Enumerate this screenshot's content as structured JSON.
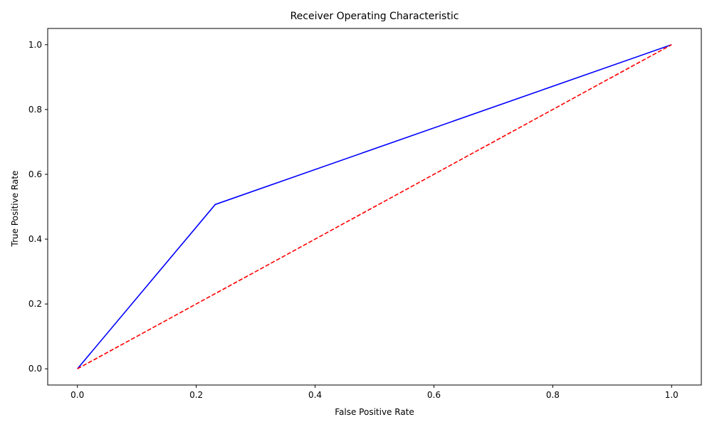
{
  "chart_data": {
    "type": "line",
    "title": "Receiver Operating Characteristic",
    "xlabel": "False Positive Rate",
    "ylabel": "True Positive Rate",
    "xlim": [
      -0.05,
      1.05
    ],
    "ylim": [
      -0.05,
      1.05
    ],
    "xticks": [
      {
        "value": 0.0,
        "label": "0.0"
      },
      {
        "value": 0.2,
        "label": "0.2"
      },
      {
        "value": 0.4,
        "label": "0.4"
      },
      {
        "value": 0.6,
        "label": "0.6"
      },
      {
        "value": 0.8,
        "label": "0.8"
      },
      {
        "value": 1.0,
        "label": "1.0"
      }
    ],
    "yticks": [
      {
        "value": 0.0,
        "label": "0.0"
      },
      {
        "value": 0.2,
        "label": "0.2"
      },
      {
        "value": 0.4,
        "label": "0.4"
      },
      {
        "value": 0.6,
        "label": "0.6"
      },
      {
        "value": 0.8,
        "label": "0.8"
      },
      {
        "value": 1.0,
        "label": "1.0"
      }
    ],
    "grid": false,
    "legend": "none",
    "series": [
      {
        "color": "#0000ff",
        "dash": "solid",
        "x": [
          0.0,
          0.232,
          1.0
        ],
        "y": [
          0.0,
          0.507,
          1.0
        ]
      },
      {
        "color": "#ff0000",
        "dash": "dashed",
        "x": [
          0.0,
          1.0
        ],
        "y": [
          0.0,
          1.0
        ]
      }
    ]
  }
}
